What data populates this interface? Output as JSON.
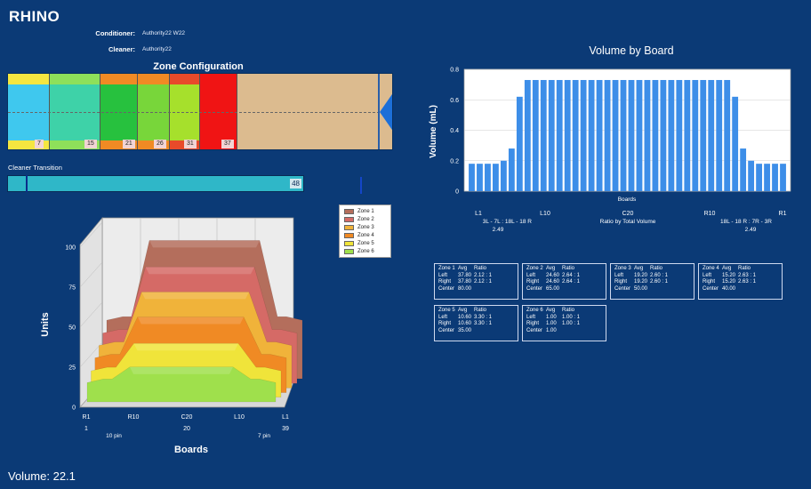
{
  "app": {
    "title": "RHINO"
  },
  "meta": {
    "conditioner_label": "Conditioner:",
    "conditioner_value": "Authority22 W22",
    "cleaner_label": "Cleaner:",
    "cleaner_value": "Authority22"
  },
  "zone_config": {
    "title": "Zone Configuration",
    "markers": [
      "7",
      "15",
      "21",
      "26",
      "31",
      "37"
    ]
  },
  "cleaner_transition": {
    "label": "Cleaner Transition",
    "value": "48"
  },
  "volume": {
    "label": "Volume: 22.1"
  },
  "volume_chart": {
    "title": "Volume by Board",
    "ylabel": "Volume (mL)",
    "xlabel": "Boards",
    "ticks_y": [
      "0",
      "0.2",
      "0.4",
      "0.6",
      "0.8"
    ],
    "xmarks": [
      "L1",
      "L10",
      "C20",
      "R10",
      "R1"
    ],
    "ratio_left_label": "3L - 7L : 18L - 18 R",
    "ratio_left_value": "2.49",
    "ratio_center_label": "Ratio by Total Volume",
    "ratio_right_label": "18L - 18 R : 7R - 3R",
    "ratio_right_value": "2.49"
  },
  "chart_data": [
    {
      "type": "bar",
      "title": "Volume by Board",
      "xlabel": "Boards",
      "ylabel": "Volume (mL)",
      "ylim": [
        0,
        0.8
      ],
      "grid": true,
      "values": [
        0.18,
        0.18,
        0.18,
        0.18,
        0.2,
        0.28,
        0.62,
        0.73,
        0.73,
        0.73,
        0.73,
        0.73,
        0.73,
        0.73,
        0.73,
        0.73,
        0.73,
        0.73,
        0.73,
        0.73,
        0.73,
        0.73,
        0.73,
        0.73,
        0.73,
        0.73,
        0.73,
        0.73,
        0.73,
        0.73,
        0.73,
        0.73,
        0.73,
        0.62,
        0.28,
        0.2,
        0.18,
        0.18,
        0.18,
        0.18
      ],
      "color": "#3d8ee8"
    },
    {
      "type": "area",
      "title": "",
      "xlabel": "Boards",
      "ylabel": "Units",
      "ylim": [
        0,
        100
      ],
      "ticks_y": [
        "0",
        "25",
        "50",
        "75",
        "100"
      ],
      "xmarks": [
        "R1",
        "R10",
        "C20",
        "L10",
        "L1"
      ],
      "xsub": [
        "1",
        "20",
        "39"
      ],
      "pin_left": "10 pin",
      "pin_right": "7 pin",
      "legend_position": "top-right",
      "series": [
        {
          "name": "Zone 1",
          "color": "#b46e5c",
          "plateau": 95
        },
        {
          "name": "Zone 2",
          "color": "#d56a66",
          "plateau": 80
        },
        {
          "name": "Zone 3",
          "color": "#f0b33a",
          "plateau": 66
        },
        {
          "name": "Zone 4",
          "color": "#f08a24",
          "plateau": 52
        },
        {
          "name": "Zone 5",
          "color": "#f0e43a",
          "plateau": 37
        },
        {
          "name": "Zone 6",
          "color": "#9fe04c",
          "plateau": 24
        }
      ]
    }
  ],
  "stats": [
    {
      "zone": "Zone 1",
      "avg_h": "Avg",
      "ratio_h": "Ratio",
      "left": "37.80",
      "left_r": "2.12 : 1",
      "right": "37.80",
      "right_r": "2.12 : 1",
      "center": "80.00"
    },
    {
      "zone": "Zone 2",
      "avg_h": "Avg",
      "ratio_h": "Ratio",
      "left": "24.60",
      "left_r": "2.64 : 1",
      "right": "24.60",
      "right_r": "2.64 : 1",
      "center": "65.00"
    },
    {
      "zone": "Zone 3",
      "avg_h": "Avg",
      "ratio_h": "Ratio",
      "left": "19.20",
      "left_r": "2.60 : 1",
      "right": "19.20",
      "right_r": "2.60 : 1",
      "center": "50.00"
    },
    {
      "zone": "Zone 4",
      "avg_h": "Avg",
      "ratio_h": "Ratio",
      "left": "15.20",
      "left_r": "2.63 : 1",
      "right": "15.20",
      "right_r": "2.63 : 1",
      "center": "40.00"
    },
    {
      "zone": "Zone 5",
      "avg_h": "Avg",
      "ratio_h": "Ratio",
      "left": "10.60",
      "left_r": "3.30 : 1",
      "right": "10.60",
      "right_r": "3.30 : 1",
      "center": "35.00"
    },
    {
      "zone": "Zone 6",
      "avg_h": "Avg",
      "ratio_h": "Ratio",
      "left": "1.00",
      "left_r": "1.00 : 1",
      "right": "1.00",
      "right_r": "1.00 : 1",
      "center": "1.00"
    }
  ],
  "stat_labels": {
    "left": "Left",
    "right": "Right",
    "center": "Center"
  }
}
